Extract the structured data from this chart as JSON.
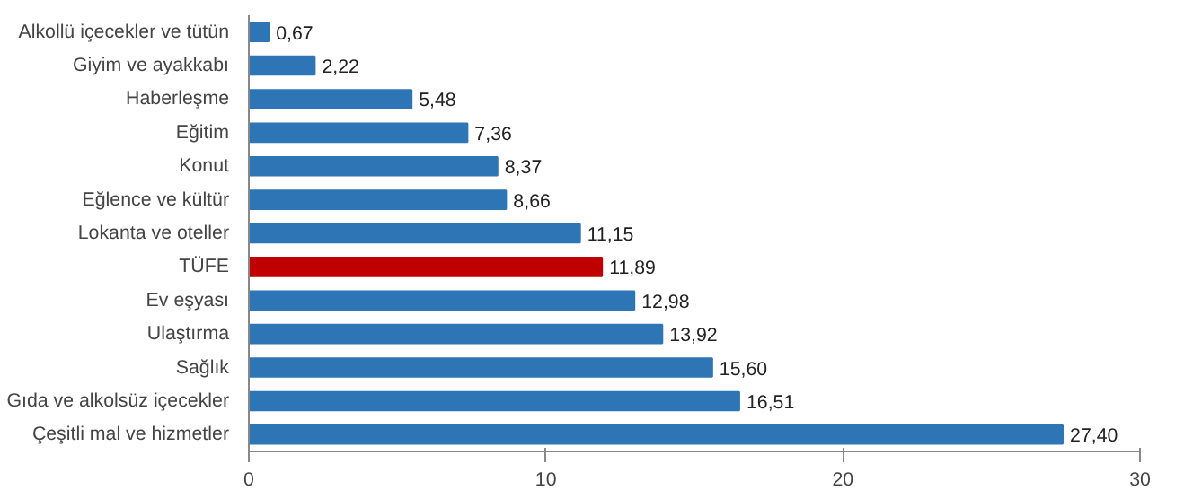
{
  "chart_data": {
    "type": "bar",
    "orientation": "horizontal",
    "categories": [
      "Alkollü içecekler ve tütün",
      "Giyim ve ayakkabı",
      "Haberleşme",
      "Eğitim",
      "Konut",
      "Eğlence ve kültür",
      "Lokanta ve oteller",
      "TÜFE",
      "Ev eşyası",
      "Ulaştırma",
      "Sağlık",
      "Gıda ve alkolsüz içecekler",
      "Çeşitli mal ve hizmetler"
    ],
    "values": [
      0.67,
      2.22,
      5.48,
      7.36,
      8.37,
      8.66,
      11.15,
      11.89,
      12.98,
      13.92,
      15.6,
      16.51,
      27.4
    ],
    "value_labels": [
      "0,67",
      "2,22",
      "5,48",
      "7,36",
      "8,37",
      "8,66",
      "11,15",
      "11,89",
      "12,98",
      "13,92",
      "15,60",
      "16,51",
      "27,40"
    ],
    "colors": [
      "#2e75b6",
      "#2e75b6",
      "#2e75b6",
      "#2e75b6",
      "#2e75b6",
      "#2e75b6",
      "#2e75b6",
      "#c00000",
      "#2e75b6",
      "#2e75b6",
      "#2e75b6",
      "#2e75b6",
      "#2e75b6"
    ],
    "xlim": [
      0,
      30
    ],
    "xticks": [
      0,
      10,
      20,
      30
    ],
    "grid": false
  }
}
